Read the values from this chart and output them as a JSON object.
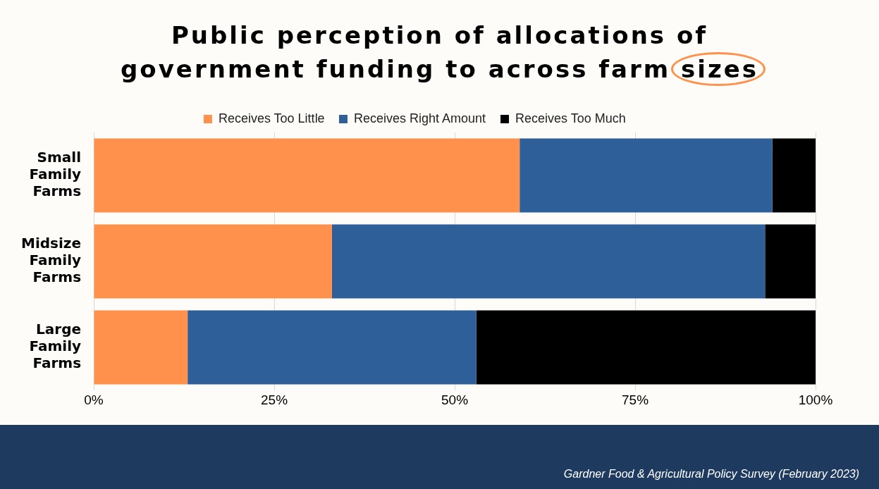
{
  "chart_data": {
    "type": "bar",
    "orientation": "horizontal",
    "stacked": true,
    "title": "Public perception of allocations of government funding to across farm sizes",
    "categories": [
      "Small Family Farms",
      "Midsize Family Farms",
      "Large Family Farms"
    ],
    "series": [
      {
        "name": "Receives Too Little",
        "color": "#ff914d",
        "values": [
          59,
          33,
          13
        ]
      },
      {
        "name": "Receives Right Amount",
        "color": "#2f5f98",
        "values": [
          35,
          60,
          40
        ]
      },
      {
        "name": "Receives Too Much",
        "color": "#000000",
        "values": [
          6,
          7,
          47
        ]
      }
    ],
    "xlim": [
      0,
      100
    ],
    "xticks": [
      {
        "value": 0,
        "label": "0%"
      },
      {
        "value": 25,
        "label": "25%"
      },
      {
        "value": 50,
        "label": "50%"
      },
      {
        "value": 75,
        "label": "75%"
      },
      {
        "value": 100,
        "label": "100%"
      }
    ],
    "grid": "x",
    "legend": "top",
    "annotations": [
      "Gardner Food & Agricultural Policy Survey (February 2023)"
    ]
  }
}
